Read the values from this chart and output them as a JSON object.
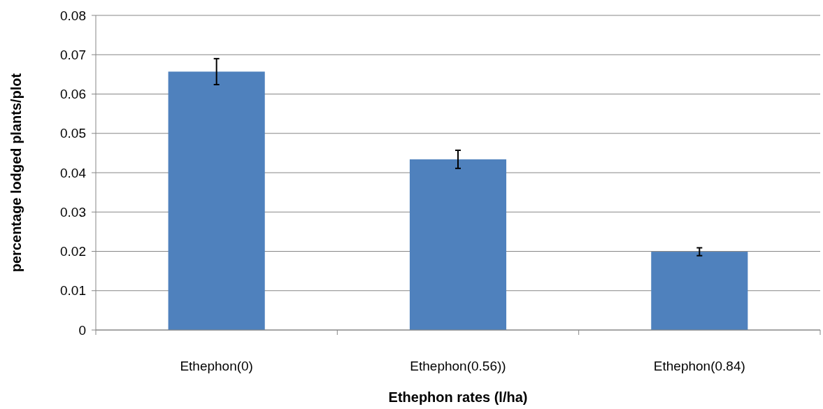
{
  "chart_data": {
    "type": "bar",
    "xlabel": "Ethephon rates (l/ha)",
    "ylabel": "percentage lodged plants/plot",
    "categories": [
      "Ethephon(0)",
      "Ethephon(0.56))",
      "Ethephon(0.84)"
    ],
    "values": [
      0.0657,
      0.0434,
      0.0199
    ],
    "errors": [
      0.0033,
      0.0023,
      0.001
    ],
    "color": "#4f81bd",
    "ylim": [
      0,
      0.08
    ],
    "yticks": [
      {
        "value": 0,
        "label": "0"
      },
      {
        "value": 0.01,
        "label": "0.01"
      },
      {
        "value": 0.02,
        "label": "0.02"
      },
      {
        "value": 0.03,
        "label": "0.03"
      },
      {
        "value": 0.04,
        "label": "0.04"
      },
      {
        "value": 0.05,
        "label": "0.05"
      },
      {
        "value": 0.06,
        "label": "0.06"
      },
      {
        "value": 0.07,
        "label": "0.07"
      },
      {
        "value": 0.08,
        "label": "0.08"
      }
    ],
    "grid": "y"
  }
}
